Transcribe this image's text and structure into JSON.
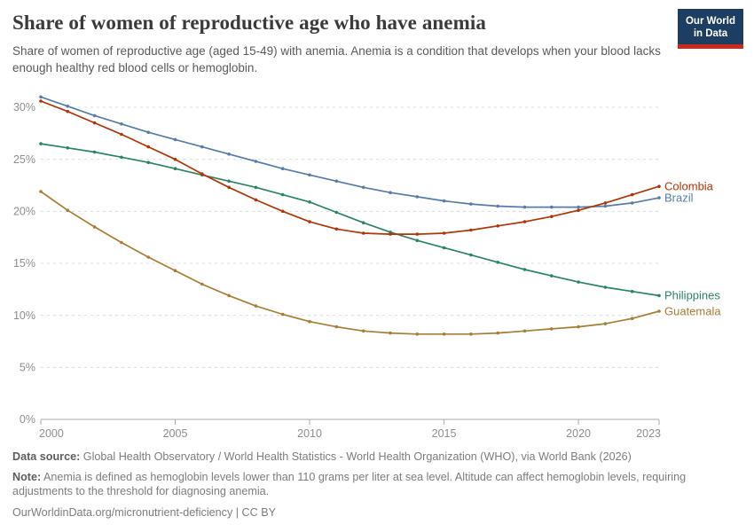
{
  "header": {
    "title": "Share of women of reproductive age who have anemia",
    "subtitle": "Share of women of reproductive age (aged 15-49) with anemia. Anemia is a condition that develops when your blood lacks enough healthy red blood cells or hemoglobin."
  },
  "logo": {
    "line1": "Our World",
    "line2": "in Data",
    "bg_color": "#1d3d63",
    "accent_color": "#cd2a1f"
  },
  "chart_data": {
    "type": "line",
    "title": "Share of women of reproductive age who have anemia",
    "x_label": "",
    "y_label": "",
    "x": [
      2000,
      2001,
      2002,
      2003,
      2004,
      2005,
      2006,
      2007,
      2008,
      2009,
      2010,
      2011,
      2012,
      2013,
      2014,
      2015,
      2016,
      2017,
      2018,
      2019,
      2020,
      2021,
      2022,
      2023
    ],
    "x_ticks": [
      2000,
      2005,
      2010,
      2015,
      2020,
      2023
    ],
    "y_ticks": [
      0,
      5,
      10,
      15,
      20,
      25,
      30
    ],
    "y_tick_suffix": "%",
    "ylim": [
      0,
      31.5
    ],
    "grid": "horizontal-dashed",
    "legend_position": "right-end-labels",
    "marker": "dot-every-year",
    "series": [
      {
        "name": "Colombia",
        "color": "#B13507",
        "values": [
          30.6,
          29.6,
          28.5,
          27.4,
          26.2,
          25.0,
          23.6,
          22.3,
          21.1,
          20.0,
          19.0,
          18.3,
          17.9,
          17.8,
          17.8,
          17.9,
          18.2,
          18.6,
          19.0,
          19.5,
          20.1,
          20.8,
          21.6,
          22.4
        ]
      },
      {
        "name": "Brazil",
        "color": "#577CA9",
        "values": [
          31.0,
          30.1,
          29.2,
          28.4,
          27.6,
          26.9,
          26.2,
          25.5,
          24.8,
          24.1,
          23.5,
          22.9,
          22.3,
          21.8,
          21.4,
          21.0,
          20.7,
          20.5,
          20.4,
          20.4,
          20.4,
          20.5,
          20.8,
          21.3
        ]
      },
      {
        "name": "Philippines",
        "color": "#2C8465",
        "values": [
          26.5,
          26.1,
          25.7,
          25.2,
          24.7,
          24.1,
          23.5,
          22.9,
          22.3,
          21.6,
          20.9,
          19.9,
          18.9,
          18.0,
          17.2,
          16.5,
          15.8,
          15.1,
          14.4,
          13.8,
          13.2,
          12.7,
          12.3,
          11.9
        ]
      },
      {
        "name": "Guatemala",
        "color": "#A87D35",
        "values": [
          21.9,
          20.1,
          18.5,
          17.0,
          15.6,
          14.3,
          13.0,
          11.9,
          10.9,
          10.1,
          9.4,
          8.9,
          8.5,
          8.3,
          8.2,
          8.2,
          8.2,
          8.3,
          8.5,
          8.7,
          8.9,
          9.2,
          9.7,
          10.4
        ]
      }
    ]
  },
  "footer": {
    "data_source_label": "Data source:",
    "data_source": " Global Health Observatory / World Health Statistics - World Health Organization (WHO), via World Bank (2026)",
    "note_label": "Note:",
    "note": " Anemia is defined as hemoglobin levels lower than 110 grams per liter at sea level. Altitude can affect hemoglobin levels, requiring adjustments to the threshold for diagnosing anemia.",
    "license": "OurWorldinData.org/micronutrient-deficiency | CC BY"
  }
}
